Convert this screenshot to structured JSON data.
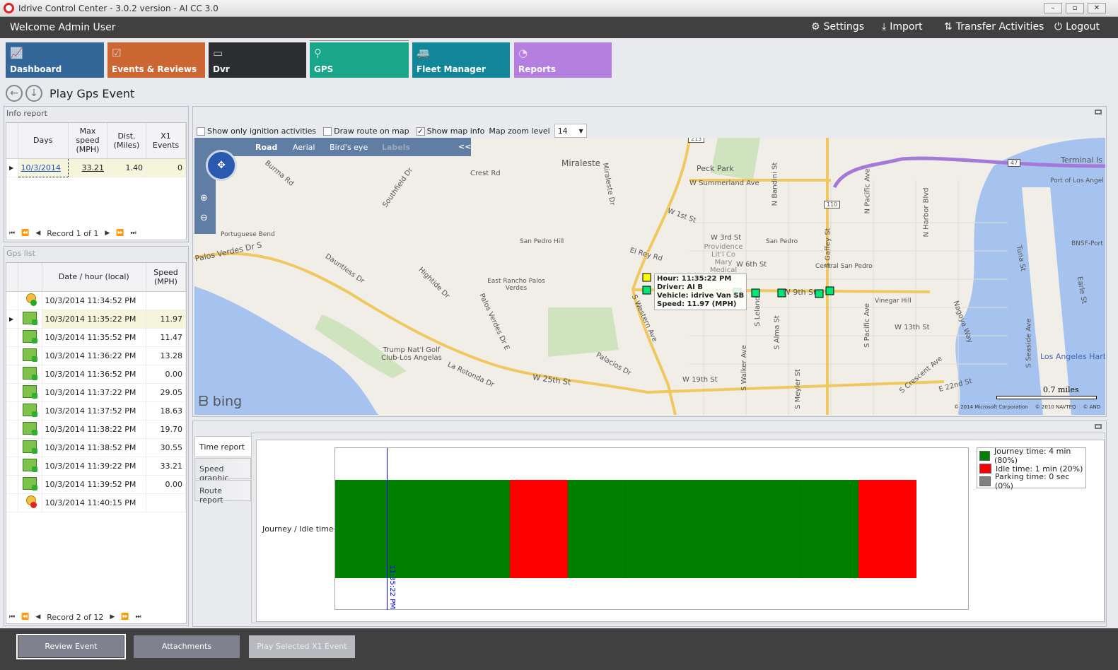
{
  "window": {
    "title": "Idrive Control Center - 3.0.2 version - AI CC 3.0",
    "min": "–",
    "max": "▫",
    "close": "✕"
  },
  "header": {
    "welcome": "Welcome Admin User",
    "settings": "Settings",
    "import": "Import",
    "transfer": "Transfer Activities",
    "logout": "Logout"
  },
  "tiles": [
    {
      "label": "Dashboard",
      "color": "#336699",
      "icon": "chart-icon"
    },
    {
      "label": "Events & Reviews",
      "color": "#cc6633",
      "icon": "clipboard-icon"
    },
    {
      "label": "Dvr",
      "color": "#2b2d31",
      "icon": "dvr-icon"
    },
    {
      "label": "GPS",
      "color": "#19a689",
      "icon": "map-pin-icon"
    },
    {
      "label": "Fleet Manager",
      "color": "#128799",
      "icon": "vehicles-icon"
    },
    {
      "label": "Reports",
      "color": "#b57fe0",
      "icon": "pie-icon"
    }
  ],
  "page": {
    "title": "Play Gps Event"
  },
  "info_report": {
    "title": "Info report",
    "columns": [
      "Days",
      "Max speed (MPH)",
      "Dist. (Miles)",
      "X1 Events"
    ],
    "rows": [
      {
        "day": "10/3/2014",
        "max": "33.21",
        "dist": "1.40",
        "x1": "0"
      }
    ],
    "record": "Record 1 of 1"
  },
  "gps_list": {
    "title": "Gps list",
    "columns": [
      "Date / hour (local)",
      "Speed (MPH)"
    ],
    "rows": [
      {
        "time": "10/3/2014 11:34:52 PM",
        "speed": "",
        "icon": "start"
      },
      {
        "time": "10/3/2014 11:35:22 PM",
        "speed": "11.97",
        "icon": "point"
      },
      {
        "time": "10/3/2014 11:35:52 PM",
        "speed": "11.47",
        "icon": "point"
      },
      {
        "time": "10/3/2014 11:36:22 PM",
        "speed": "13.28",
        "icon": "point"
      },
      {
        "time": "10/3/2014 11:36:52 PM",
        "speed": "0.00",
        "icon": "point"
      },
      {
        "time": "10/3/2014 11:37:22 PM",
        "speed": "29.05",
        "icon": "point"
      },
      {
        "time": "10/3/2014 11:37:52 PM",
        "speed": "18.63",
        "icon": "point"
      },
      {
        "time": "10/3/2014 11:38:22 PM",
        "speed": "19.70",
        "icon": "point"
      },
      {
        "time": "10/3/2014 11:38:52 PM",
        "speed": "30.55",
        "icon": "point"
      },
      {
        "time": "10/3/2014 11:39:22 PM",
        "speed": "33.21",
        "icon": "point"
      },
      {
        "time": "10/3/2014 11:39:52 PM",
        "speed": "0.00",
        "icon": "point"
      },
      {
        "time": "10/3/2014 11:40:15 PM",
        "speed": "",
        "icon": "end"
      }
    ],
    "selected": 1,
    "record": "Record 2 of 12"
  },
  "map_options": {
    "ignition": "Show only ignition activities",
    "ignition_checked": false,
    "route": "Draw route on map",
    "route_checked": false,
    "info": "Show map info",
    "info_checked": true,
    "zoom_label": "Map zoom level",
    "zoom_value": "14"
  },
  "map": {
    "modes": [
      "Road",
      "Aerial",
      "Bird's eye",
      "Labels"
    ],
    "collapse": "<<",
    "brand": "bing",
    "scale": "0.7 miles",
    "copyright": [
      "© 2014 Microsoft Corporation",
      "© 2010 NAVTEQ",
      "© AND"
    ],
    "labels": [
      "Miraleste",
      "Peck Park",
      "W Summerland Ave",
      "Crest Rd",
      "Burma Rd",
      "Southfield Dr",
      "Portuguese Bend",
      "Palos Verdes Dr S",
      "Dauntless Dr",
      "San Pedro Hill",
      "Hightide Dr",
      "East Rancho Palos Verdes",
      "Palos Verdes Dr E",
      "Trump Nat'l Golf Club-Los Angelas",
      "La Rotonda Dr",
      "W 25th St",
      "Palacios Dr",
      "S Western Ave",
      "El Rey Rd",
      "W 1st St",
      "W 3rd St",
      "Providence Lit'l Co Mary Medical",
      "W 6th St",
      "San Pedro",
      "Central San Pedro",
      "W 9th St",
      "Vinegar Hill",
      "W 13th St",
      "W 19th St",
      "S Gaffey St",
      "N Pacific Ave",
      "S Pacific Ave",
      "N Harbor Blvd",
      "Terminal Is",
      "Port of Los Angel",
      "BNSF-Port",
      "Los Angeles Harb",
      "E 22nd St",
      "S Crescent Ave",
      "Miraleste Dr",
      "N Bandini St",
      "S Alma St",
      "S Leland",
      "S Walker Ave",
      "S Meyler St",
      "Tuna St",
      "Earle St",
      "S Seaside Ave",
      "Nagoya Way",
      "110",
      "47",
      "213"
    ],
    "tooltip": {
      "hour": "Hour: 11:35:22 PM",
      "driver": "Driver: AI B",
      "vehicle": "Vehicle: idrive Van SB",
      "speed": "Speed: 11.97 (MPH)"
    }
  },
  "report_tabs": [
    "Time report",
    "Speed graphic",
    "Route report"
  ],
  "chart_data": {
    "type": "bar",
    "orientation": "horizontal-timeline",
    "category": "Journey / Idle time",
    "intervals": [
      "journey",
      "journey",
      "journey",
      "idle",
      "journey",
      "journey",
      "journey",
      "journey",
      "journey",
      "idle"
    ],
    "colors": {
      "journey": "#008000",
      "idle": "#ff0000",
      "parking": "#808080"
    },
    "cursor": "11:35:22 PM",
    "legend": [
      "Journey time: 4 min (80%)",
      "Idle time: 1 min (20%)",
      "Parking time: 0 sec (0%)"
    ],
    "legend_position": "top-right"
  },
  "footer": {
    "review": "Review Event",
    "attachments": "Attachments",
    "play": "Play Selected X1 Event"
  }
}
